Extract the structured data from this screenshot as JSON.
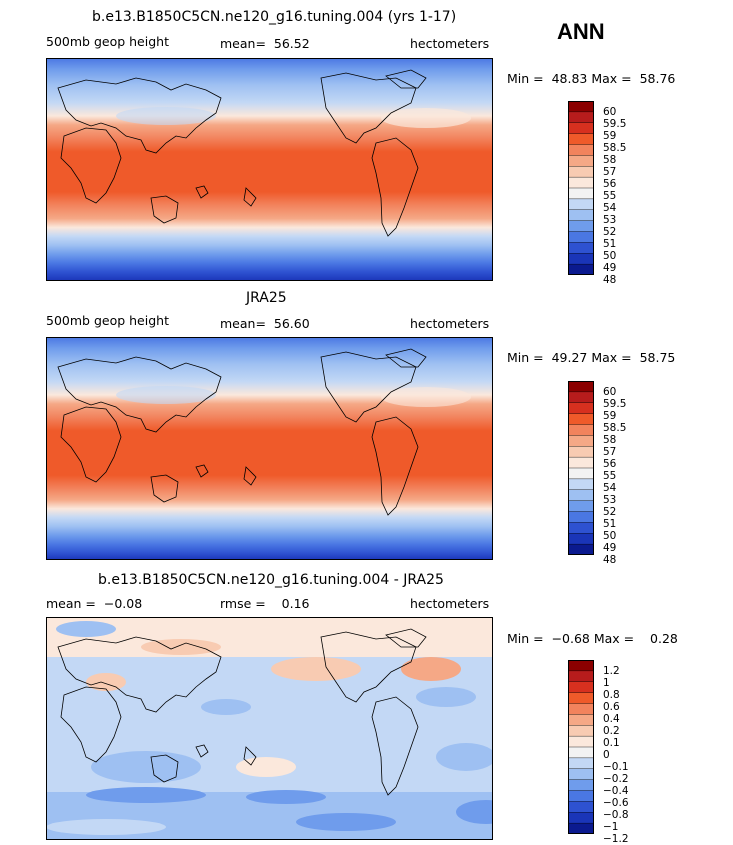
{
  "season": "ANN",
  "units": "hectometers",
  "chart_data": [
    {
      "type": "heatmap",
      "title": "b.e13.B1850C5CN.ne120_g16.tuning.004 (yrs 1-17)",
      "left_label": "500mb geop height",
      "center_label": "mean=  56.52",
      "right_label": "hectometers",
      "min_max": "Min =  48.83 Max =  58.76",
      "min": 48.83,
      "max": 58.76,
      "mean": 56.52,
      "colorbar": {
        "labels": [
          "60",
          "59.5",
          "59",
          "58.5",
          "58",
          "57",
          "56",
          "55",
          "54",
          "53",
          "52",
          "51",
          "50",
          "49",
          "48"
        ],
        "colors": [
          "#8b0000",
          "#b71c1c",
          "#d7301f",
          "#ef5a2a",
          "#f2835d",
          "#f5a886",
          "#f8cbb2",
          "#fbe8dc",
          "#f2f2f2",
          "#c3d8f5",
          "#9ec0f2",
          "#6f9cec",
          "#4a77e3",
          "#2e52d1",
          "#1a35b8",
          "#0b1a8f"
        ]
      }
    },
    {
      "type": "heatmap",
      "title": "JRA25",
      "left_label": "500mb geop height",
      "center_label": "mean=  56.60",
      "right_label": "hectometers",
      "min_max": "Min =  49.27 Max =  58.75",
      "min": 49.27,
      "max": 58.75,
      "mean": 56.6,
      "colorbar": {
        "labels": [
          "60",
          "59.5",
          "59",
          "58.5",
          "58",
          "57",
          "56",
          "55",
          "54",
          "53",
          "52",
          "51",
          "50",
          "49",
          "48"
        ],
        "colors": [
          "#8b0000",
          "#b71c1c",
          "#d7301f",
          "#ef5a2a",
          "#f2835d",
          "#f5a886",
          "#f8cbb2",
          "#fbe8dc",
          "#f2f2f2",
          "#c3d8f5",
          "#9ec0f2",
          "#6f9cec",
          "#4a77e3",
          "#2e52d1",
          "#1a35b8",
          "#0b1a8f"
        ]
      }
    },
    {
      "type": "heatmap",
      "title": "b.e13.B1850C5CN.ne120_g16.tuning.004 - JRA25",
      "left_label": "mean =  −0.08",
      "center_label": "rmse =    0.16",
      "right_label": "hectometers",
      "min_max": "Min =  −0.68 Max =    0.28",
      "min": -0.68,
      "max": 0.28,
      "mean": -0.08,
      "rmse": 0.16,
      "colorbar": {
        "labels": [
          "1.2",
          "1",
          "0.8",
          "0.6",
          "0.4",
          "0.2",
          "0.1",
          "0",
          "−0.1",
          "−0.2",
          "−0.4",
          "−0.6",
          "−0.8",
          "−1",
          "−1.2"
        ],
        "colors": [
          "#8b0000",
          "#b71c1c",
          "#d7301f",
          "#ef5a2a",
          "#f2835d",
          "#f5a886",
          "#f8cbb2",
          "#fbe8dc",
          "#f2f2f2",
          "#c3d8f5",
          "#9ec0f2",
          "#6f9cec",
          "#4a77e3",
          "#2e52d1",
          "#1a35b8",
          "#0b1a8f"
        ]
      }
    }
  ]
}
